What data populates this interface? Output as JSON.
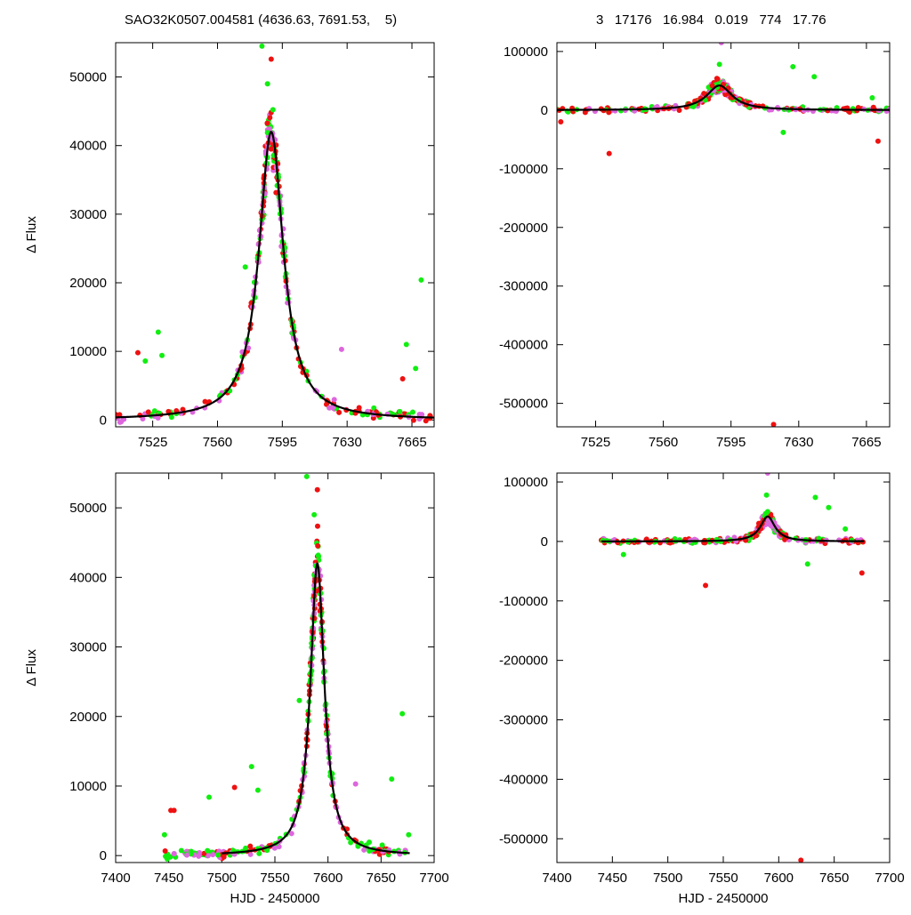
{
  "header": {
    "left_title": "SAO32K0507.004581 (4636.63, 7691.53,    5)",
    "right_stats": "3   17176   16.984   0.019   774   17.76"
  },
  "colors": {
    "red": "#ee1111",
    "green": "#11ee11",
    "violet": "#dd66dd",
    "model": "#000000"
  },
  "chart_data": [
    {
      "id": "top-left",
      "type": "scatter",
      "xlabel": "",
      "ylabel": "Δ Flux",
      "xlim": [
        7505,
        7677
      ],
      "ylim": [
        -1000,
        55000
      ],
      "xticks": [
        7525,
        7560,
        7595,
        7630,
        7665
      ],
      "yticks": [
        0,
        10000,
        20000,
        30000,
        40000,
        50000
      ],
      "model": {
        "type": "lorentzian",
        "t0": 7589,
        "amplitude": 42000,
        "half_width": 8,
        "xrange": [
          7505,
          7677
        ]
      },
      "outliers": [
        {
          "x": 7517,
          "y": 9800,
          "c": "red"
        },
        {
          "x": 7528,
          "y": 12800,
          "c": "green"
        },
        {
          "x": 7530,
          "y": 9400,
          "c": "green"
        },
        {
          "x": 7521,
          "y": 8600,
          "c": "green"
        },
        {
          "x": 7584,
          "y": 54500,
          "c": "green"
        },
        {
          "x": 7589,
          "y": 52600,
          "c": "red"
        },
        {
          "x": 7587,
          "y": 49000,
          "c": "green"
        },
        {
          "x": 7662,
          "y": 11000,
          "c": "green"
        },
        {
          "x": 7670,
          "y": 20400,
          "c": "green"
        },
        {
          "x": 7667,
          "y": 7500,
          "c": "green"
        },
        {
          "x": 7627,
          "y": 10300,
          "c": "violet"
        },
        {
          "x": 7660,
          "y": 6000,
          "c": "red"
        },
        {
          "x": 7575,
          "y": 22300,
          "c": "green"
        }
      ]
    },
    {
      "id": "top-right",
      "type": "scatter",
      "xlabel": "",
      "ylabel": "",
      "xlim": [
        7505,
        7677
      ],
      "ylim": [
        -540000,
        115000
      ],
      "xticks": [
        7525,
        7560,
        7595,
        7630,
        7665
      ],
      "yticks": [
        100000,
        0,
        -100000,
        -200000,
        -300000,
        -400000,
        -500000
      ],
      "model": {
        "type": "lorentzian",
        "t0": 7589,
        "amplitude": 42000,
        "half_width": 8,
        "xrange": [
          7505,
          7677
        ]
      },
      "outliers": [
        {
          "x": 7532,
          "y": -74000,
          "c": "red"
        },
        {
          "x": 7590,
          "y": 115000,
          "c": "violet"
        },
        {
          "x": 7589,
          "y": 78000,
          "c": "green"
        },
        {
          "x": 7617,
          "y": -536000,
          "c": "red"
        },
        {
          "x": 7627,
          "y": 74000,
          "c": "green"
        },
        {
          "x": 7638,
          "y": 57000,
          "c": "green"
        },
        {
          "x": 7671,
          "y": -53000,
          "c": "red"
        },
        {
          "x": 7668,
          "y": 21000,
          "c": "green"
        },
        {
          "x": 7622,
          "y": -38000,
          "c": "green"
        },
        {
          "x": 7507,
          "y": -20000,
          "c": "red"
        }
      ]
    },
    {
      "id": "bottom-left",
      "type": "scatter",
      "xlabel": "HJD - 2450000",
      "ylabel": "Δ Flux",
      "xlim": [
        7400,
        7700
      ],
      "ylim": [
        -1000,
        55000
      ],
      "xticks": [
        7400,
        7450,
        7500,
        7550,
        7600,
        7650,
        7700
      ],
      "yticks": [
        0,
        10000,
        20000,
        30000,
        40000,
        50000
      ],
      "model": {
        "type": "lorentzian",
        "t0": 7590,
        "amplitude": 42000,
        "half_width": 8,
        "xrange": [
          7500,
          7677
        ]
      },
      "outliers": [
        {
          "x": 7446,
          "y": 3000,
          "c": "green"
        },
        {
          "x": 7452,
          "y": 6500,
          "c": "red"
        },
        {
          "x": 7455,
          "y": 6500,
          "c": "red"
        },
        {
          "x": 7488,
          "y": 8400,
          "c": "green"
        },
        {
          "x": 7512,
          "y": 9800,
          "c": "red"
        },
        {
          "x": 7528,
          "y": 12800,
          "c": "green"
        },
        {
          "x": 7534,
          "y": 9400,
          "c": "green"
        },
        {
          "x": 7580,
          "y": 54500,
          "c": "green"
        },
        {
          "x": 7590,
          "y": 52600,
          "c": "red"
        },
        {
          "x": 7587,
          "y": 49000,
          "c": "green"
        },
        {
          "x": 7670,
          "y": 20400,
          "c": "green"
        },
        {
          "x": 7660,
          "y": 11000,
          "c": "green"
        },
        {
          "x": 7626,
          "y": 10300,
          "c": "violet"
        },
        {
          "x": 7573,
          "y": 22300,
          "c": "green"
        },
        {
          "x": 7676,
          "y": 3000,
          "c": "green"
        }
      ]
    },
    {
      "id": "bottom-right",
      "type": "scatter",
      "xlabel": "HJD - 2450000",
      "ylabel": "",
      "xlim": [
        7400,
        7700
      ],
      "ylim": [
        -540000,
        115000
      ],
      "xticks": [
        7400,
        7450,
        7500,
        7550,
        7600,
        7650,
        7700
      ],
      "yticks": [
        100000,
        0,
        -100000,
        -200000,
        -300000,
        -400000,
        -500000
      ],
      "model": {
        "type": "lorentzian",
        "t0": 7590,
        "amplitude": 42000,
        "half_width": 8,
        "xrange": [
          7440,
          7677
        ]
      },
      "outliers": [
        {
          "x": 7534,
          "y": -74000,
          "c": "red"
        },
        {
          "x": 7590,
          "y": 115000,
          "c": "violet"
        },
        {
          "x": 7589,
          "y": 78000,
          "c": "green"
        },
        {
          "x": 7620,
          "y": -536000,
          "c": "red"
        },
        {
          "x": 7633,
          "y": 74000,
          "c": "green"
        },
        {
          "x": 7645,
          "y": 57000,
          "c": "green"
        },
        {
          "x": 7675,
          "y": -53000,
          "c": "red"
        },
        {
          "x": 7660,
          "y": 21000,
          "c": "green"
        },
        {
          "x": 7626,
          "y": -38000,
          "c": "green"
        },
        {
          "x": 7460,
          "y": -22000,
          "c": "green"
        }
      ]
    }
  ]
}
